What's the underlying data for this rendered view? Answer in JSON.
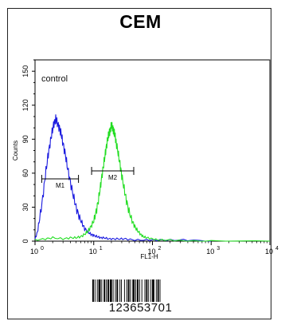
{
  "header": {
    "title": "CEM"
  },
  "chart_data": {
    "type": "line",
    "title": "CEM",
    "xlabel": "FL1-H",
    "ylabel": "Counts",
    "xscale": "log",
    "xlim": [
      1,
      10000
    ],
    "ylim": [
      0,
      160
    ],
    "x_ticks": [
      {
        "value": 1,
        "base": "10",
        "exp": "0"
      },
      {
        "value": 10,
        "base": "10",
        "exp": "1"
      },
      {
        "value": 100,
        "base": "10",
        "exp": "2"
      },
      {
        "value": 1000,
        "base": "10",
        "exp": "3"
      },
      {
        "value": 10000,
        "base": "10",
        "exp": "4"
      }
    ],
    "y_ticks": [
      0,
      30,
      60,
      90,
      120,
      150
    ],
    "grid": false,
    "annotations": [
      {
        "text": "control",
        "position": "top-left"
      }
    ],
    "markers": [
      {
        "label": "M1",
        "x_start": 1.3,
        "x_end": 5.5,
        "y": 55
      },
      {
        "label": "M2",
        "x_start": 9.2,
        "x_end": 48,
        "y": 62
      }
    ],
    "series": [
      {
        "color": "#1a1adf",
        "x": [
          1.0,
          1.1,
          1.2,
          1.35,
          1.5,
          1.65,
          1.8,
          1.95,
          2.1,
          2.25,
          2.4,
          2.6,
          2.8,
          3.0,
          3.3,
          3.6,
          4.0,
          4.5,
          5.0,
          5.6,
          6.3,
          7.0,
          8.0,
          9.0,
          10.0,
          11.5,
          13.0,
          15.0,
          18.0,
          22.0,
          28.0,
          35.0,
          50.0,
          80.0,
          120.0,
          200.0,
          400.0,
          1000.0
        ],
        "y": [
          2,
          8,
          20,
          38,
          58,
          74,
          86,
          96,
          104,
          108,
          104,
          100,
          94,
          86,
          76,
          64,
          52,
          40,
          30,
          22,
          16,
          11,
          8,
          6,
          5,
          4,
          3,
          3,
          2,
          2,
          2,
          2,
          1,
          1,
          1,
          1,
          1,
          0
        ]
      },
      {
        "color": "#22dd22",
        "x": [
          1.0,
          1.5,
          2.0,
          3.0,
          4.0,
          5.0,
          6.0,
          7.0,
          8.0,
          9.0,
          10.0,
          11.0,
          12.0,
          13.0,
          14.0,
          15.0,
          16.0,
          17.0,
          18.0,
          19.0,
          20.0,
          21.0,
          22.0,
          23.0,
          24.0,
          26.0,
          28.0,
          30.0,
          33.0,
          36.0,
          40.0,
          45.0,
          50.0,
          56.0,
          63.0,
          70.0,
          80.0,
          100.0,
          130.0,
          200.0,
          400.0,
          1000.0,
          10000.0
        ],
        "y": [
          1,
          2,
          3,
          2,
          3,
          3,
          4,
          6,
          9,
          13,
          18,
          26,
          36,
          48,
          60,
          70,
          80,
          88,
          94,
          98,
          102,
          100,
          97,
          93,
          88,
          78,
          68,
          58,
          46,
          36,
          26,
          18,
          13,
          9,
          6,
          4,
          3,
          2,
          1,
          1,
          0,
          0,
          0
        ]
      }
    ]
  },
  "barcode": {
    "number": "123653701"
  }
}
